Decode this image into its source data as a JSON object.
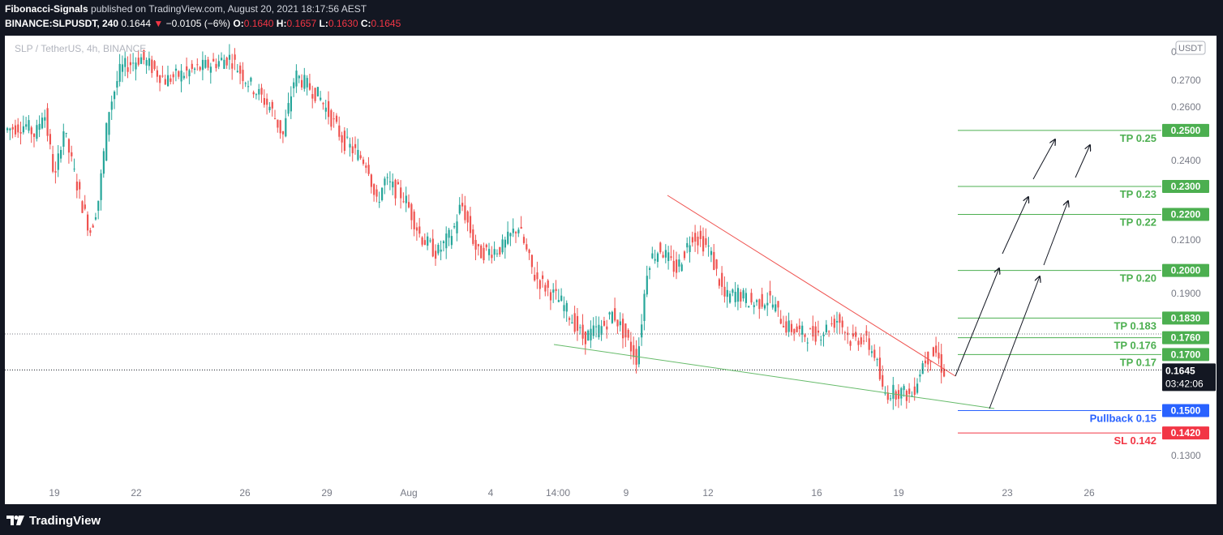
{
  "header": {
    "author": "Fibonacci-Signals",
    "published_text": "published on TradingView.com, August 20, 2021 18:17:56 AEST",
    "symbol": "BINANCE:SLPUSDT, 240",
    "last": "0.1644",
    "change": "−0.0105 (−6%)",
    "o_label": "O:",
    "o": "0.1640",
    "h_label": "H:",
    "h": "0.1657",
    "l_label": "L:",
    "l": "0.1630",
    "c_label": "C:",
    "c": "0.1645"
  },
  "watermark": "SLP / TetherUS, 4h, BINANCE",
  "footer": {
    "brand": "TradingView"
  },
  "colors": {
    "up": "#26a69a",
    "down": "#ef5350",
    "tp_line": "#4caf50",
    "tp_label": "#4caf50",
    "pullback": "#2962ff",
    "sl": "#f23645",
    "price_tag": "#131722"
  },
  "chart_data": {
    "type": "candlestick",
    "currency_label": "USDT",
    "y_ticks": [
      "0",
      "0.2700",
      "0.2600",
      "0.2400",
      "0.2100",
      "0.1900",
      "0.1300"
    ],
    "x_ticks": [
      "19",
      "22",
      "26",
      "29",
      "Aug",
      "4",
      "14:00",
      "9",
      "12",
      "16",
      "19",
      "23",
      "26"
    ],
    "ylim": [
      0.1241,
      0.2838
    ],
    "current_price": "0.1645",
    "countdown": "03:42:06",
    "levels": [
      {
        "label": "TP 0.25",
        "value": 0.25,
        "tag": "0.2500",
        "kind": "tp"
      },
      {
        "label": "TP 0.23",
        "value": 0.23,
        "tag": "0.2300",
        "kind": "tp"
      },
      {
        "label": "TP 0.22",
        "value": 0.22,
        "tag": "0.2200",
        "kind": "tp"
      },
      {
        "label": "TP 0.20",
        "value": 0.2,
        "tag": "0.2000",
        "kind": "tp"
      },
      {
        "label": "TP 0.183",
        "value": 0.183,
        "tag": "0.1830",
        "kind": "tp"
      },
      {
        "label": "TP 0.176",
        "value": 0.176,
        "tag": "0.1760",
        "kind": "tp"
      },
      {
        "label": "TP 0.17",
        "value": 0.17,
        "tag": "0.1700",
        "kind": "tp"
      },
      {
        "label": "Pullback 0.15",
        "value": 0.15,
        "tag": "0.1500",
        "kind": "pullback"
      },
      {
        "label": "SL 0.142",
        "value": 0.142,
        "tag": "0.1420",
        "kind": "sl"
      }
    ]
  }
}
